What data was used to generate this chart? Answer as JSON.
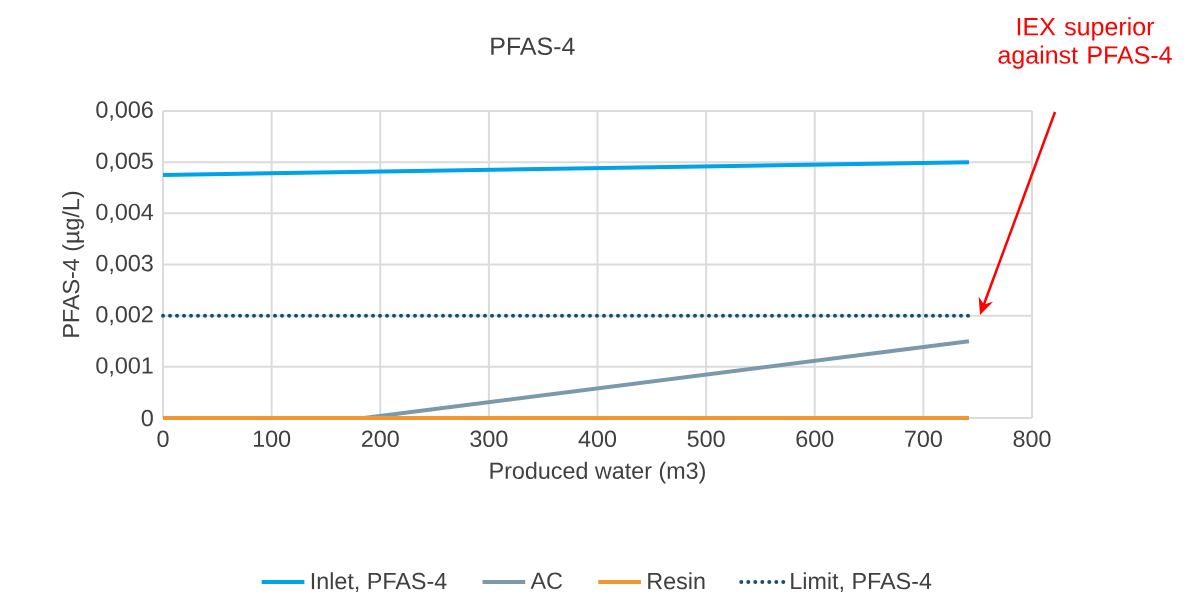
{
  "chart_data": {
    "type": "line",
    "title": "PFAS-4",
    "xlabel": "Produced water (m3)",
    "ylabel": "PFAS-4 (µg/L)",
    "xlim": [
      0,
      800
    ],
    "xticks": [
      0,
      100,
      200,
      300,
      400,
      500,
      600,
      700,
      800
    ],
    "ylim": [
      0,
      0.006
    ],
    "yticks": [
      {
        "value": 0,
        "label": "0"
      },
      {
        "value": 0.001,
        "label": "0,001"
      },
      {
        "value": 0.002,
        "label": "0,002"
      },
      {
        "value": 0.003,
        "label": "0,003"
      },
      {
        "value": 0.004,
        "label": "0,004"
      },
      {
        "value": 0.005,
        "label": "0,005"
      },
      {
        "value": 0.006,
        "label": "0,006"
      }
    ],
    "grid": true,
    "legend": "bottom",
    "marker": "none",
    "series": [
      {
        "name": "Inlet, PFAS-4",
        "color": "#00a2e8",
        "x": [
          0,
          742
        ],
        "values": [
          0.00475,
          0.005
        ]
      },
      {
        "name": "AC",
        "color": "#7b98ad",
        "x": [
          0,
          185,
          742
        ],
        "values": [
          0,
          0,
          0.0015
        ]
      },
      {
        "name": "Resin",
        "color": "#ef962e",
        "x": [
          0,
          742
        ],
        "values": [
          0,
          0
        ]
      },
      {
        "name": "Limit, PFAS-4",
        "color": "#17506e",
        "line_style": "dotted",
        "x": [
          0,
          742
        ],
        "values": [
          0.002,
          0.002
        ]
      }
    ],
    "annotations": [
      "IEX superior against PFAS-4"
    ]
  }
}
